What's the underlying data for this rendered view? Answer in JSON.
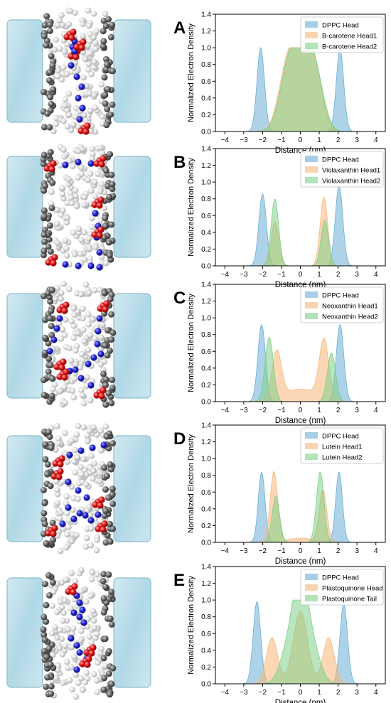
{
  "panels": [
    {
      "letter": "A"
    },
    {
      "letter": "B"
    },
    {
      "letter": "C"
    },
    {
      "letter": "D"
    },
    {
      "letter": "E"
    }
  ],
  "colors": {
    "dppc": "#6baed6",
    "head1": "#f7b77a",
    "head2": "#7fd08a",
    "water": "#a9d3e3",
    "lipid_tail": "#cfcfcf",
    "lipid_head": "#4f4f4f",
    "carotenoid_chain": "#1f1fc8",
    "carotenoid_head": "#e01010"
  },
  "chart_data": [
    {
      "type": "area",
      "ylabel": "Normalized Electron Density",
      "xlabel": "Distance (nm)",
      "xlim": [
        -4.5,
        4.5
      ],
      "ylim": [
        0,
        1.4
      ],
      "xticks": [
        -4,
        -3,
        -2,
        -1,
        0,
        1,
        2,
        3,
        4
      ],
      "yticks": [
        0.0,
        0.2,
        0.4,
        0.6,
        0.8,
        1.0,
        1.2,
        1.4
      ],
      "legend_position": "top-right",
      "series": [
        {
          "name": "DPPC Head",
          "color": "#6baed6",
          "peaks": [
            [
              -2.1,
              1.0,
              0.2
            ],
            [
              2.1,
              0.98,
              0.2
            ]
          ]
        },
        {
          "name": "B-carotene Head1",
          "color": "#f7b77a",
          "peaks": [
            [
              -0.75,
              0.62,
              0.45
            ],
            [
              0.0,
              0.85,
              0.5
            ],
            [
              0.75,
              0.62,
              0.45
            ]
          ]
        },
        {
          "name": "B-carotene Head2",
          "color": "#7fd08a",
          "peaks": [
            [
              -0.7,
              0.6,
              0.45
            ],
            [
              0.05,
              0.88,
              0.5
            ],
            [
              0.8,
              0.6,
              0.45
            ]
          ]
        }
      ]
    },
    {
      "type": "area",
      "ylabel": "Normalized Electron Density",
      "xlabel": "Distance (nm)",
      "xlim": [
        -4.5,
        4.5
      ],
      "ylim": [
        0,
        1.4
      ],
      "xticks": [
        -4,
        -3,
        -2,
        -1,
        0,
        1,
        2,
        3,
        4
      ],
      "yticks": [
        0.0,
        0.2,
        0.4,
        0.6,
        0.8,
        1.0,
        1.2,
        1.4
      ],
      "legend_position": "top-right",
      "series": [
        {
          "name": "DPPC Head",
          "color": "#6baed6",
          "peaks": [
            [
              -2.0,
              0.86,
              0.2
            ],
            [
              2.05,
              0.96,
              0.2
            ]
          ]
        },
        {
          "name": "Violaxanthin Head1",
          "color": "#f7b77a",
          "peaks": [
            [
              -1.35,
              0.53,
              0.2
            ],
            [
              1.25,
              0.82,
              0.2
            ]
          ]
        },
        {
          "name": "Violaxanthin Head2",
          "color": "#7fd08a",
          "peaks": [
            [
              -1.35,
              0.8,
              0.2
            ],
            [
              1.3,
              0.55,
              0.2
            ]
          ]
        }
      ]
    },
    {
      "type": "area",
      "ylabel": "Normalized Electron Density",
      "xlabel": "Distance (nm)",
      "xlim": [
        -4.5,
        4.5
      ],
      "ylim": [
        0,
        1.4
      ],
      "xticks": [
        -4,
        -3,
        -2,
        -1,
        0,
        1,
        2,
        3,
        4
      ],
      "yticks": [
        0.0,
        0.2,
        0.4,
        0.6,
        0.8,
        1.0,
        1.2,
        1.4
      ],
      "legend_position": "top-right",
      "series": [
        {
          "name": "DPPC Head",
          "color": "#6baed6",
          "peaks": [
            [
              -2.05,
              0.92,
              0.2
            ],
            [
              2.1,
              0.92,
              0.2
            ]
          ]
        },
        {
          "name": "Neoxanthin Head1",
          "color": "#f7b77a",
          "peaks": [
            [
              -1.25,
              0.56,
              0.25
            ],
            [
              1.25,
              0.7,
              0.25
            ],
            [
              0.0,
              0.15,
              0.9
            ]
          ]
        },
        {
          "name": "Neoxanthin Head2",
          "color": "#7fd08a",
          "peaks": [
            [
              -1.65,
              0.77,
              0.22
            ],
            [
              1.65,
              0.58,
              0.22
            ]
          ]
        }
      ]
    },
    {
      "type": "area",
      "ylabel": "Normalized Electron Density",
      "xlabel": "Distance (nm)",
      "xlim": [
        -4.5,
        4.5
      ],
      "ylim": [
        0,
        1.4
      ],
      "xticks": [
        -4,
        -3,
        -2,
        -1,
        0,
        1,
        2,
        3,
        4
      ],
      "yticks": [
        0.0,
        0.2,
        0.4,
        0.6,
        0.8,
        1.0,
        1.2,
        1.4
      ],
      "legend_position": "top-right",
      "series": [
        {
          "name": "DPPC Head",
          "color": "#6baed6",
          "peaks": [
            [
              -2.05,
              0.84,
              0.18
            ],
            [
              2.05,
              0.84,
              0.18
            ]
          ]
        },
        {
          "name": "Lutein Head1",
          "color": "#f7b77a",
          "peaks": [
            [
              -1.4,
              0.84,
              0.2
            ],
            [
              1.2,
              0.62,
              0.2
            ],
            [
              0.0,
              0.05,
              0.7
            ]
          ]
        },
        {
          "name": "Lutein Head2",
          "color": "#7fd08a",
          "peaks": [
            [
              -1.3,
              0.55,
              0.2
            ],
            [
              1.05,
              0.84,
              0.2
            ]
          ]
        }
      ]
    },
    {
      "type": "area",
      "ylabel": "Normalized Electron Density",
      "xlabel": "Distance (nm)",
      "xlim": [
        -4.5,
        4.5
      ],
      "ylim": [
        0,
        1.4
      ],
      "xticks": [
        -4,
        -3,
        -2,
        -1,
        0,
        1,
        2,
        3,
        4
      ],
      "yticks": [
        0.0,
        0.2,
        0.4,
        0.6,
        0.8,
        1.0,
        1.2,
        1.4
      ],
      "legend_position": "top-right",
      "series": [
        {
          "name": "DPPC Head",
          "color": "#6baed6",
          "peaks": [
            [
              -2.3,
              0.98,
              0.2
            ],
            [
              2.3,
              0.96,
              0.2
            ]
          ]
        },
        {
          "name": "Plastoquinone Head",
          "color": "#f7b77a",
          "peaks": [
            [
              -1.5,
              0.55,
              0.3
            ],
            [
              1.5,
              0.55,
              0.3
            ],
            [
              0.0,
              0.86,
              0.38
            ]
          ]
        },
        {
          "name": "Plastoquinone Tail",
          "color": "#7fd08a",
          "peaks": [
            [
              -0.55,
              0.5,
              0.45
            ],
            [
              0.0,
              0.92,
              0.35
            ],
            [
              0.55,
              0.5,
              0.45
            ]
          ]
        }
      ]
    }
  ]
}
